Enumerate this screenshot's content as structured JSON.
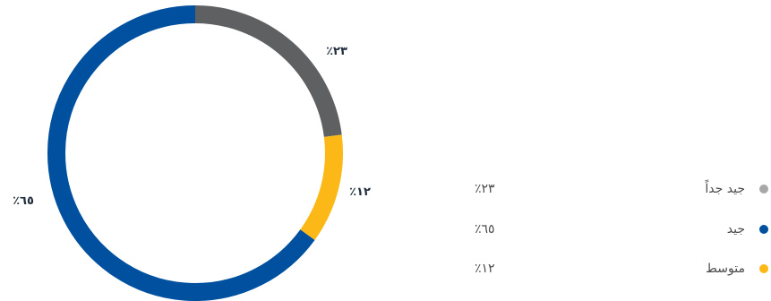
{
  "chart_data": {
    "type": "pie",
    "variant": "donut",
    "title": "",
    "categories": [
      "جيد جداً",
      "جيد",
      "متوسط"
    ],
    "values": [
      23,
      65,
      12
    ],
    "value_labels": [
      "٪٢٣",
      "٪٦٥",
      "٪١٢"
    ],
    "colors": [
      "#5f6062",
      "#0050a0",
      "#fbb817"
    ],
    "start_angle_deg": 0,
    "direction": "clockwise",
    "legend_position": "right"
  },
  "legend": {
    "items": [
      {
        "label": "جيد جداً",
        "value": "٪٢٣",
        "color": "#a8a8a8"
      },
      {
        "label": "جيد",
        "value": "٪٦٥",
        "color": "#0050a0"
      },
      {
        "label": "متوسط",
        "value": "٪١٢",
        "color": "#fbb817"
      }
    ]
  }
}
